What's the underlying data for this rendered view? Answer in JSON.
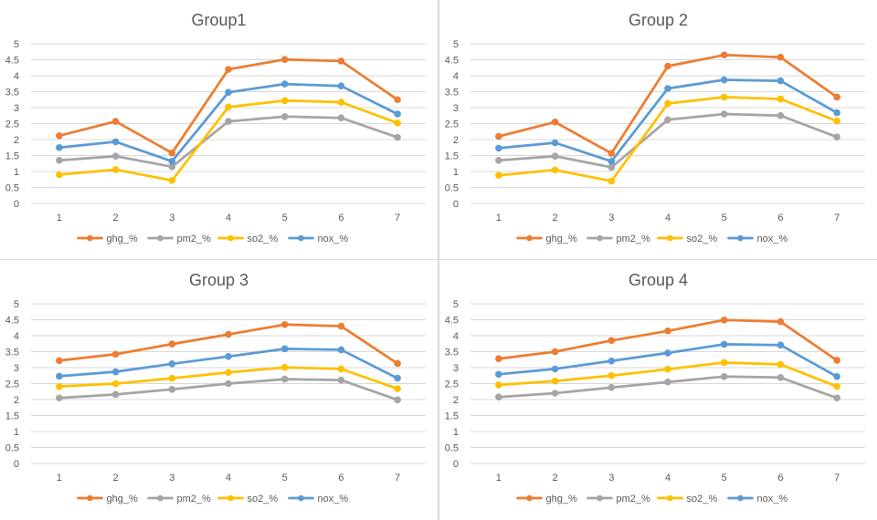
{
  "chart_data": [
    {
      "type": "line",
      "title": "Group1",
      "x": [
        1,
        2,
        3,
        4,
        5,
        6,
        7
      ],
      "ylim": [
        0,
        5
      ],
      "yticks": [
        0,
        0.5,
        1,
        1.5,
        2,
        2.5,
        3,
        3.5,
        4,
        4.5,
        5
      ],
      "grid": true,
      "legend_position": "bottom",
      "series": [
        {
          "name": "ghg_%",
          "color": "#ED7D31",
          "values": [
            2.12,
            2.57,
            1.58,
            4.2,
            4.51,
            4.46,
            3.25
          ]
        },
        {
          "name": "pm2_%",
          "color": "#A5A5A5",
          "values": [
            1.35,
            1.48,
            1.15,
            2.57,
            2.72,
            2.68,
            2.07
          ]
        },
        {
          "name": "so2_%",
          "color": "#FFC000",
          "values": [
            0.9,
            1.06,
            0.72,
            3.02,
            3.22,
            3.17,
            2.52
          ]
        },
        {
          "name": "nox_%",
          "color": "#5B9BD5",
          "values": [
            1.75,
            1.93,
            1.32,
            3.48,
            3.74,
            3.68,
            2.8
          ]
        }
      ]
    },
    {
      "type": "line",
      "title": "Group 2",
      "x": [
        1,
        2,
        3,
        4,
        5,
        6,
        7
      ],
      "ylim": [
        0,
        5
      ],
      "yticks": [
        0,
        0.5,
        1,
        1.5,
        2,
        2.5,
        3,
        3.5,
        4,
        4.5,
        5
      ],
      "grid": true,
      "legend_position": "bottom",
      "series": [
        {
          "name": "ghg_%",
          "color": "#ED7D31",
          "values": [
            2.1,
            2.55,
            1.57,
            4.3,
            4.65,
            4.58,
            3.33
          ]
        },
        {
          "name": "pm2_%",
          "color": "#A5A5A5",
          "values": [
            1.35,
            1.48,
            1.13,
            2.62,
            2.8,
            2.75,
            2.08
          ]
        },
        {
          "name": "so2_%",
          "color": "#FFC000",
          "values": [
            0.88,
            1.05,
            0.7,
            3.13,
            3.33,
            3.27,
            2.58
          ]
        },
        {
          "name": "nox_%",
          "color": "#5B9BD5",
          "values": [
            1.73,
            1.9,
            1.32,
            3.6,
            3.87,
            3.84,
            2.84
          ]
        }
      ]
    },
    {
      "type": "line",
      "title": "Group 3",
      "x": [
        1,
        2,
        3,
        4,
        5,
        6,
        7
      ],
      "ylim": [
        0,
        5
      ],
      "yticks": [
        0,
        0.5,
        1,
        1.5,
        2,
        2.5,
        3,
        3.5,
        4,
        4.5,
        5
      ],
      "grid": true,
      "legend_position": "bottom",
      "series": [
        {
          "name": "ghg_%",
          "color": "#ED7D31",
          "values": [
            3.22,
            3.42,
            3.74,
            4.04,
            4.35,
            4.3,
            3.13
          ]
        },
        {
          "name": "pm2_%",
          "color": "#A5A5A5",
          "values": [
            2.05,
            2.16,
            2.32,
            2.5,
            2.64,
            2.61,
            1.99
          ]
        },
        {
          "name": "so2_%",
          "color": "#FFC000",
          "values": [
            2.41,
            2.5,
            2.67,
            2.85,
            3.01,
            2.96,
            2.34
          ]
        },
        {
          "name": "nox_%",
          "color": "#5B9BD5",
          "values": [
            2.73,
            2.87,
            3.12,
            3.35,
            3.59,
            3.56,
            2.67
          ]
        }
      ]
    },
    {
      "type": "line",
      "title": "Group 4",
      "x": [
        1,
        2,
        3,
        4,
        5,
        6,
        7
      ],
      "ylim": [
        0,
        5
      ],
      "yticks": [
        0,
        0.5,
        1,
        1.5,
        2,
        2.5,
        3,
        3.5,
        4,
        4.5,
        5
      ],
      "grid": true,
      "legend_position": "bottom",
      "series": [
        {
          "name": "ghg_%",
          "color": "#ED7D31",
          "values": [
            3.28,
            3.5,
            3.85,
            4.15,
            4.49,
            4.44,
            3.23
          ]
        },
        {
          "name": "pm2_%",
          "color": "#A5A5A5",
          "values": [
            2.08,
            2.2,
            2.38,
            2.55,
            2.72,
            2.69,
            2.05
          ]
        },
        {
          "name": "so2_%",
          "color": "#FFC000",
          "values": [
            2.46,
            2.58,
            2.75,
            2.95,
            3.16,
            3.1,
            2.41
          ]
        },
        {
          "name": "nox_%",
          "color": "#5B9BD5",
          "values": [
            2.79,
            2.96,
            3.21,
            3.46,
            3.73,
            3.71,
            2.72
          ]
        }
      ]
    }
  ]
}
